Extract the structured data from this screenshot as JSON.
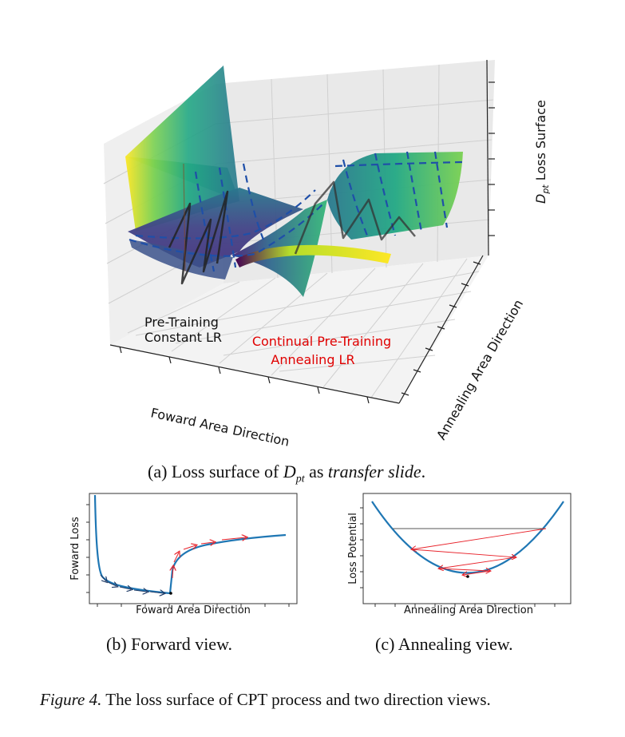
{
  "panel_a": {
    "labels": {
      "pretraining_line1": "Pre-Training",
      "pretraining_line2": "Constant LR",
      "cpt_line1": "Continual Pre-Training",
      "cpt_line2": "Annealing LR",
      "x_axis": "Foward Area Direction",
      "y_axis": "Annealing Area Direction",
      "z_axis_prefix": "D",
      "z_axis_sub": "pt",
      "z_axis_suffix": " Loss Surface"
    },
    "caption": {
      "prefix": "(a) Loss surface of ",
      "math": "D",
      "math_sub": "pt",
      "middle": " as ",
      "italic": "transfer slide",
      "suffix": "."
    }
  },
  "panel_b": {
    "xlabel": "Foward Area Direction",
    "ylabel": "Foward Loss",
    "caption": "(b) Forward view."
  },
  "panel_c": {
    "xlabel": "Annealing Area Direction",
    "ylabel": "Loss Potential",
    "caption": "(c) Annealing view."
  },
  "figure_caption": {
    "label": "Figure 4.",
    "text": " The loss surface of CPT process and two direction views."
  },
  "colors": {
    "curve": "#1f77b4",
    "arrow_red": "#e8222a",
    "arrow_dark": "#1f3a66",
    "cpt_label": "#e00000"
  }
}
